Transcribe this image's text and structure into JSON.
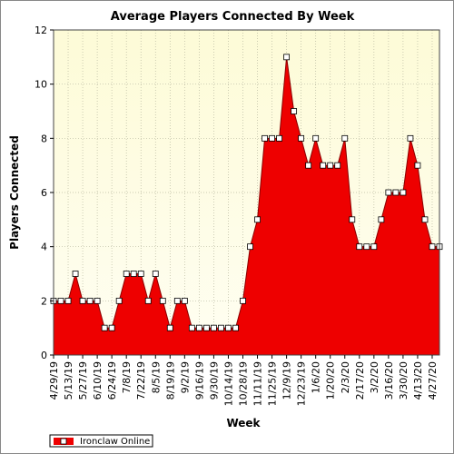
{
  "chart_data": {
    "type": "area",
    "title": "Average Players Connected By Week",
    "xlabel": "Week",
    "ylabel": "Players Connected",
    "ylim": [
      0,
      12
    ],
    "yticks": [
      0,
      2,
      4,
      6,
      8,
      10,
      12
    ],
    "grid": true,
    "legend_position": "bottom-left",
    "x_tick_labels": [
      "4/29/19",
      "5/13/19",
      "5/27/19",
      "6/10/19",
      "6/24/19",
      "7/8/19",
      "7/22/19",
      "8/5/19",
      "8/19/19",
      "9/2/19",
      "9/16/19",
      "9/30/19",
      "10/14/19",
      "10/28/19",
      "11/11/19",
      "11/25/19",
      "12/9/19",
      "12/23/19",
      "1/6/20",
      "1/20/20",
      "2/3/20",
      "2/17/20",
      "3/2/20",
      "3/16/20",
      "3/30/20",
      "4/13/20",
      "4/27/20"
    ],
    "series": [
      {
        "name": "Ironclaw Online",
        "color": "#ee0000",
        "values": [
          2,
          2,
          2,
          3,
          2,
          2,
          2,
          1,
          1,
          2,
          3,
          3,
          3,
          2,
          3,
          2,
          1,
          2,
          2,
          1,
          1,
          1,
          1,
          1,
          1,
          1,
          2,
          4,
          5,
          8,
          8,
          8,
          11,
          9,
          8,
          7,
          8,
          7,
          7,
          7,
          8,
          5,
          4,
          4,
          4,
          5,
          6,
          6,
          6,
          8,
          7,
          5,
          4,
          4
        ]
      }
    ]
  }
}
